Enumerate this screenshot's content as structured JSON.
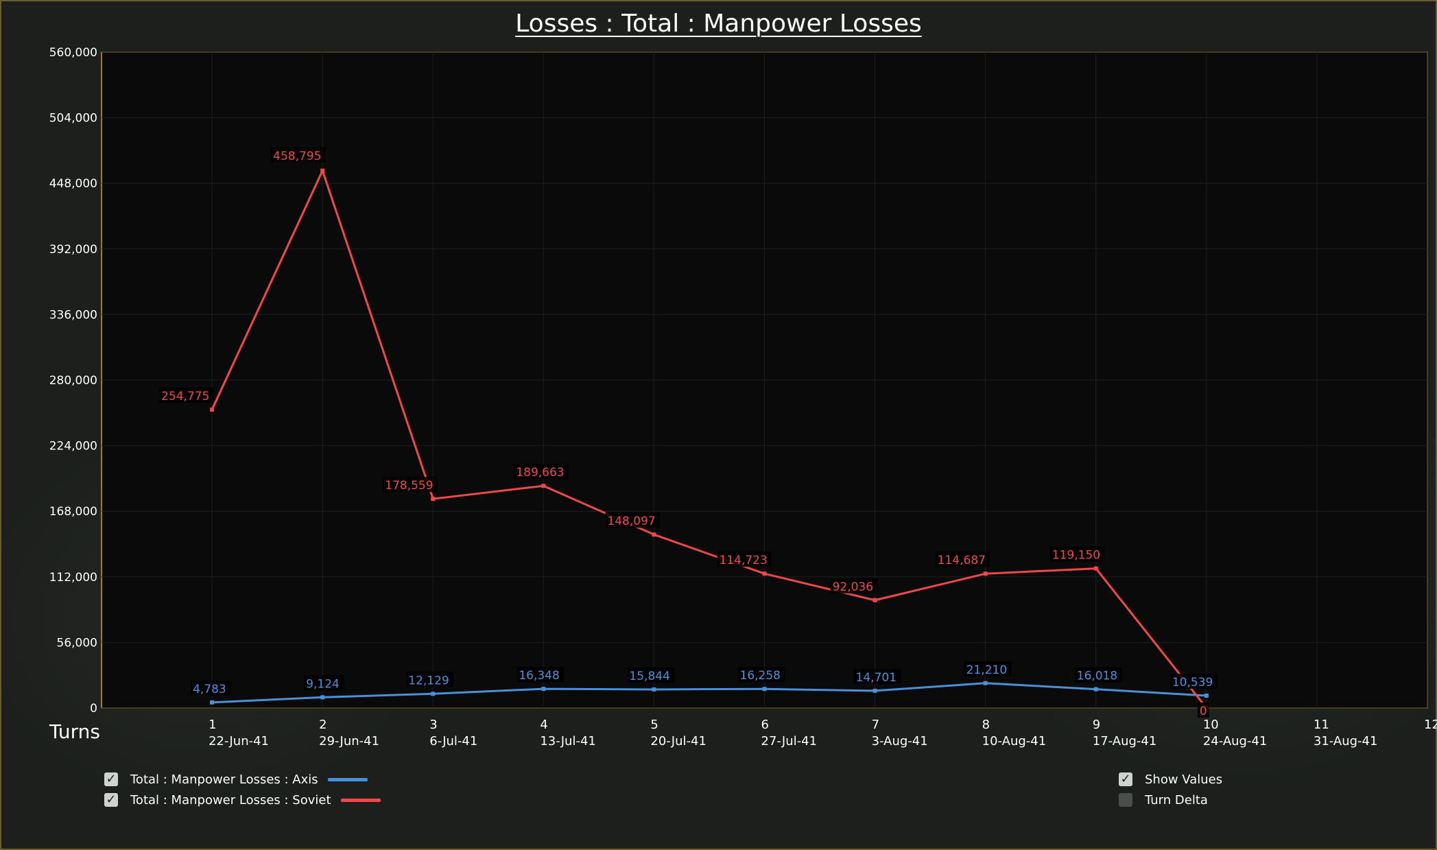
{
  "title": "Losses : Total : Manpower Losses",
  "chart_data": {
    "type": "line",
    "title": "Losses : Total : Manpower Losses",
    "xlabel": "Turns",
    "ylabel": "",
    "ylim": [
      0,
      560000
    ],
    "yticks": [
      "560,000",
      "504,000",
      "448,000",
      "392,000",
      "336,000",
      "280,000",
      "224,000",
      "168,000",
      "112,000",
      "56,000",
      "0"
    ],
    "ytick_values": [
      560000,
      504000,
      448000,
      392000,
      336000,
      280000,
      224000,
      168000,
      112000,
      56000,
      0
    ],
    "x": [
      1,
      2,
      3,
      4,
      5,
      6,
      7,
      8,
      9,
      10,
      11,
      12
    ],
    "xlim": [
      0,
      12
    ],
    "turn_labels": [
      "1",
      "2",
      "3",
      "4",
      "5",
      "6",
      "7",
      "8",
      "9",
      "10",
      "11",
      "12"
    ],
    "date_labels": [
      "22-Jun-41",
      "29-Jun-41",
      "6-Jul-41",
      "13-Jul-41",
      "20-Jul-41",
      "27-Jul-41",
      "3-Aug-41",
      "10-Aug-41",
      "17-Aug-41",
      "24-Aug-41",
      "31-Aug-41",
      ""
    ],
    "grid": true,
    "legend_position": "bottom-left",
    "series": [
      {
        "name": "Total : Manpower Losses : Axis",
        "color": "#4a90d9",
        "x": [
          1,
          2,
          3,
          4,
          5,
          6,
          7,
          8,
          9,
          10
        ],
        "values": [
          4783,
          9124,
          12129,
          16348,
          15844,
          16258,
          14701,
          21210,
          16018,
          10539
        ],
        "labels": [
          "4,783",
          "9,124",
          "12,129",
          "16,348",
          "15,844",
          "16,258",
          "14,701",
          "21,210",
          "16,018",
          "10,539"
        ]
      },
      {
        "name": "Total : Manpower Losses : Soviet",
        "color": "#f04848",
        "x": [
          1,
          2,
          3,
          4,
          5,
          6,
          7,
          8,
          9,
          10
        ],
        "values": [
          254775,
          458795,
          178559,
          189663,
          148097,
          114723,
          92036,
          114687,
          119150,
          0
        ],
        "labels": [
          "254,775",
          "458,795",
          "178,559",
          "189,663",
          "148,097",
          "114,723",
          "92,036",
          "114,687",
          "119,150",
          "0"
        ]
      }
    ]
  },
  "legend": {
    "axis_label": "Total : Manpower Losses : Axis",
    "soviet_label": "Total : Manpower Losses : Soviet",
    "axis_color": "#4a90d9",
    "soviet_color": "#f04848"
  },
  "options": {
    "show_values_label": "Show Values",
    "show_values_checked": true,
    "turn_delta_label": "Turn Delta",
    "turn_delta_checked": false
  }
}
